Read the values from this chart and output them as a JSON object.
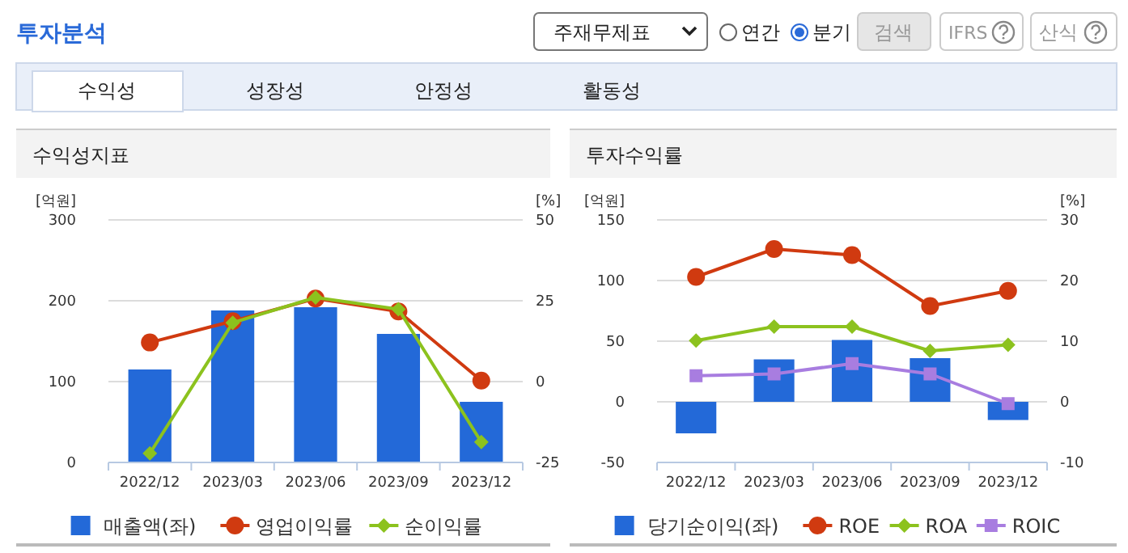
{
  "chart_data": [
    {
      "type": "other",
      "title": "투자분석",
      "annotations": [
        "주재무제표",
        "연간",
        "분기",
        "검색",
        "IFRS",
        "산식",
        "수익성",
        "성장성",
        "안정성",
        "활동성"
      ]
    },
    {
      "type": "bar",
      "title": "수익성지표",
      "ylabel": "[억원]",
      "y2label": "[%]",
      "categories": [
        "2022/12",
        "2023/03",
        "2023/06",
        "2023/09",
        "2023/12"
      ],
      "ylim": [
        0,
        300
      ],
      "yticks": [
        0,
        100,
        200,
        300
      ],
      "y2lim": [
        -25,
        50
      ],
      "y2ticks": [
        -25,
        0,
        25,
        50
      ],
      "grid": "y",
      "legend": "bottom",
      "series": [
        {
          "name": "매출액(좌)",
          "type": "bar",
          "color": "#2369d8",
          "values": [
            115,
            188,
            192,
            159,
            75
          ]
        },
        {
          "name": "영업이익률",
          "type": "line",
          "axis": "y2",
          "marker": "circle",
          "color": "#d03a10",
          "values": [
            12.1,
            18.7,
            25.7,
            21.7,
            0.3
          ]
        },
        {
          "name": "순이익률",
          "type": "line",
          "axis": "y2",
          "marker": "diamond",
          "color": "#8cc21e",
          "values": [
            -22.2,
            18.2,
            26,
            22.4,
            -18.7
          ]
        }
      ]
    },
    {
      "type": "bar",
      "title": "투자수익률",
      "ylabel": "[억원]",
      "y2label": "[%]",
      "categories": [
        "2022/12",
        "2023/03",
        "2023/06",
        "2023/09",
        "2023/12"
      ],
      "ylim": [
        -50,
        150
      ],
      "yticks": [
        -50,
        0,
        50,
        100,
        150
      ],
      "y2lim": [
        -10,
        30
      ],
      "y2ticks": [
        -10,
        0,
        10,
        20,
        30
      ],
      "grid": "y",
      "legend": "bottom",
      "series": [
        {
          "name": "당기순이익(좌)",
          "type": "bar",
          "color": "#2369d8",
          "values": [
            -26,
            35,
            51,
            36,
            -15
          ]
        },
        {
          "name": "ROE",
          "type": "line",
          "axis": "y2",
          "marker": "circle",
          "color": "#d03a10",
          "values": [
            20.6,
            25.2,
            24.2,
            15.8,
            18.3
          ]
        },
        {
          "name": "ROA",
          "type": "line",
          "axis": "y2",
          "marker": "diamond",
          "color": "#8cc21e",
          "values": [
            10.1,
            12.4,
            12.4,
            8.4,
            9.4
          ]
        },
        {
          "name": "ROIC",
          "type": "line",
          "axis": "y2",
          "marker": "square",
          "color": "#a87de0",
          "values": [
            4.3,
            4.6,
            6.3,
            4.6,
            -0.3
          ]
        }
      ]
    }
  ]
}
